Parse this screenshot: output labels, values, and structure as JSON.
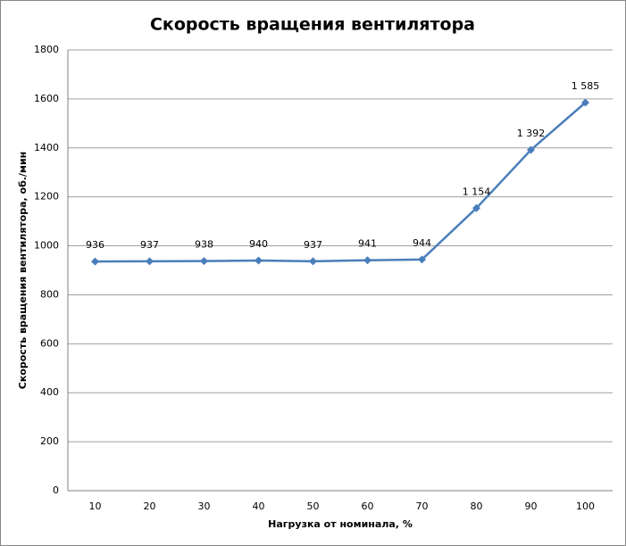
{
  "chart_data": {
    "type": "line",
    "title": "Скорость вращения вентилятора",
    "x_label": "Нагрузка от номинала,  %",
    "y_label": "Скорость вращения вентилятора,  об./мин",
    "categories": [
      "10",
      "20",
      "30",
      "40",
      "50",
      "60",
      "70",
      "80",
      "90",
      "100"
    ],
    "series": [
      {
        "color": "#4a7ebb",
        "values": [
          936,
          937,
          938,
          940,
          937,
          941,
          944,
          1154,
          1392,
          1585
        ],
        "value_labels": [
          "936",
          "937",
          "938",
          "940",
          "937",
          "941",
          "944",
          "1 154",
          "1 392",
          "1 585"
        ]
      }
    ],
    "ylim": [
      0,
      1800
    ],
    "yticks": [
      0,
      200,
      400,
      600,
      800,
      1000,
      1200,
      1400,
      1600,
      1800
    ],
    "grid": true
  }
}
